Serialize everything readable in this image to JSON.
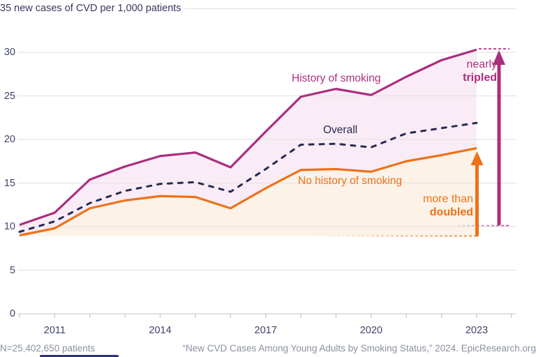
{
  "header": {
    "title": "35 new cases of CVD per 1,000 patients"
  },
  "footer": {
    "left": "N=25,402,650 patients",
    "right": "“New CVD Cases Among Young Adults by Smoking Status,” 2024. EpicResearch.org"
  },
  "colors": {
    "history": "#ab2d7e",
    "overall": "#272a52",
    "no_history": "#ed7218",
    "history_fill": "#faecf6",
    "no_history_fill": "#fdf2e8",
    "grid": "#e4e4e4",
    "axis": "#d8d8d8",
    "tick": "#c6c6c6",
    "axis_text": "#40436b",
    "footer_text": "#8b909e"
  },
  "chart_data": {
    "type": "line",
    "title": "new cases of CVD per 1,000 patients",
    "x": [
      2010,
      2011,
      2012,
      2013,
      2014,
      2015,
      2016,
      2017,
      2018,
      2019,
      2020,
      2021,
      2022,
      2023
    ],
    "series": [
      {
        "name": "History of smoking",
        "color": "#ab2d7e",
        "style": "solid",
        "values": [
          10.2,
          11.6,
          15.4,
          16.9,
          18.1,
          18.5,
          16.8,
          20.9,
          24.9,
          25.8,
          25.1,
          27.2,
          29.1,
          30.3
        ]
      },
      {
        "name": "Overall",
        "color": "#272a52",
        "style": "dashed",
        "values": [
          9.4,
          10.6,
          12.7,
          14.1,
          14.9,
          15.1,
          14.0,
          16.6,
          19.4,
          19.5,
          19.1,
          20.7,
          21.3,
          21.9
        ]
      },
      {
        "name": "No history of smoking",
        "color": "#ed7218",
        "style": "solid",
        "values": [
          9.0,
          9.8,
          12.1,
          13.0,
          13.5,
          13.4,
          12.1,
          14.4,
          16.5,
          16.6,
          16.3,
          17.5,
          18.2,
          19.0
        ]
      }
    ],
    "ylim": [
      0,
      35
    ],
    "yticks": [
      0,
      5,
      10,
      15,
      20,
      25,
      30,
      35
    ],
    "xticks_labeled": [
      2011,
      2014,
      2017,
      2020,
      2023
    ],
    "grid": true,
    "legend_position": "inline-labels",
    "annotations": [
      {
        "id": "tripled",
        "line1": "nearly",
        "line2": "tripled",
        "color": "#ab2d7e",
        "refers_to": "History of smoking"
      },
      {
        "id": "doubled",
        "line1": "more than",
        "line2": "doubled",
        "color": "#ed7218",
        "refers_to": "No history of smoking"
      }
    ]
  }
}
